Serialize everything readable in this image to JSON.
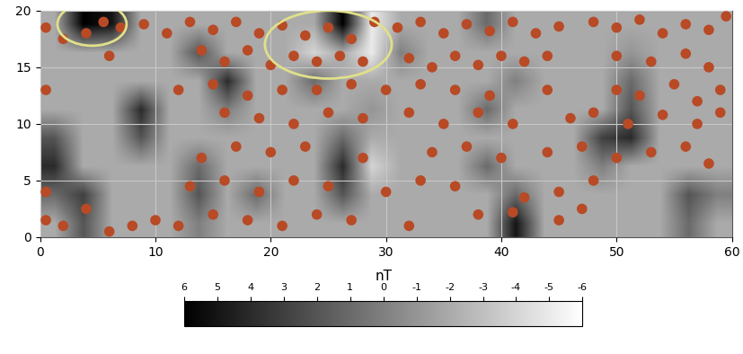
{
  "chart_data": {
    "type": "heatmap",
    "xlim": [
      0,
      60
    ],
    "xticks": [
      0,
      10,
      20,
      30,
      40,
      50,
      60
    ],
    "ylim": [
      0,
      20
    ],
    "yticks": [
      0,
      5,
      10,
      15,
      20
    ],
    "grid": true,
    "cells": [
      [
        -2,
        2,
        -2,
        -2,
        -2,
        0,
        -2,
        -2,
        -2,
        -2,
        -2,
        -2,
        -2,
        -2,
        -2,
        -2,
        5,
        -2,
        -2,
        -2,
        -2,
        -2,
        1,
        -2
      ],
      [
        1,
        3,
        -2,
        -2,
        -2,
        2,
        -2,
        1,
        -2,
        -2,
        2,
        -2,
        -2,
        -2,
        -2,
        -2,
        1,
        -2,
        -2,
        -2,
        -2,
        -2,
        2,
        0
      ],
      [
        4,
        -2,
        -2,
        -2,
        -2,
        1,
        -2,
        -2,
        -2,
        -2,
        4,
        -4,
        -2,
        -2,
        -2,
        1,
        -2,
        -2,
        -2,
        0,
        -2,
        -2,
        -2,
        -2
      ],
      [
        2,
        -2,
        -2,
        2,
        -2,
        -2,
        -2,
        -2,
        -2,
        -2,
        1,
        -2,
        -2,
        -2,
        -2,
        -2,
        -2,
        -2,
        -2,
        3,
        4,
        -2,
        -2,
        -2
      ],
      [
        -2,
        -2,
        -2,
        4,
        -2,
        -2,
        0,
        -2,
        -2,
        -2,
        -2,
        -1,
        -2,
        -2,
        -2,
        1,
        -2,
        -2,
        -2,
        -2,
        2,
        -2,
        -2,
        -2
      ],
      [
        -2,
        -2,
        -2,
        -2,
        -2,
        -2,
        4,
        -2,
        -2,
        1,
        -2,
        -2,
        -2,
        -2,
        -2,
        -2,
        0,
        -2,
        -2,
        -2,
        1,
        -2,
        -2,
        -2
      ],
      [
        -2,
        -2,
        -2,
        -2,
        -2,
        2,
        -2,
        -2,
        -2,
        -4,
        -2,
        -5,
        0,
        -2,
        -2,
        -2,
        -2,
        -2,
        -2,
        -2,
        -1,
        -2,
        -2,
        -2
      ],
      [
        -2,
        6,
        5,
        -2,
        -2,
        -2,
        -2,
        -2,
        -2,
        -2,
        6,
        -5,
        -2,
        -2,
        -2,
        1,
        -2,
        -2,
        -2,
        -2,
        -2,
        -2,
        -2,
        -2
      ]
    ],
    "colorbar_label": "nT",
    "colorbar_range": [
      6,
      -6
    ],
    "colorbar_ticks": [
      6,
      5,
      4,
      3,
      2,
      1,
      0,
      -1,
      -2,
      -3,
      -4,
      -5,
      -6
    ],
    "overlay": {
      "color": "#b84a26",
      "points": [
        [
          0.5,
          18.5
        ],
        [
          2,
          17.5
        ],
        [
          4,
          18
        ],
        [
          5.5,
          19
        ],
        [
          7,
          18.5
        ],
        [
          9,
          18.8
        ],
        [
          11,
          18
        ],
        [
          13,
          19
        ],
        [
          15,
          18.3
        ],
        [
          17,
          19
        ],
        [
          19,
          18
        ],
        [
          21,
          18.7
        ],
        [
          23,
          17.8
        ],
        [
          25,
          18.5
        ],
        [
          27,
          17.5
        ],
        [
          29,
          19
        ],
        [
          31,
          18.5
        ],
        [
          33,
          19
        ],
        [
          35,
          18
        ],
        [
          37,
          18.8
        ],
        [
          39,
          18.2
        ],
        [
          41,
          19
        ],
        [
          43,
          18
        ],
        [
          45,
          18.6
        ],
        [
          48,
          19
        ],
        [
          50,
          18.5
        ],
        [
          52,
          19.2
        ],
        [
          54,
          18
        ],
        [
          56,
          18.8
        ],
        [
          58,
          18.3
        ],
        [
          59.5,
          19.5
        ],
        [
          6,
          16
        ],
        [
          14,
          16.5
        ],
        [
          16,
          15.5
        ],
        [
          18,
          16.5
        ],
        [
          20,
          15.2
        ],
        [
          22,
          16
        ],
        [
          24,
          15.5
        ],
        [
          26,
          16
        ],
        [
          28,
          15.5
        ],
        [
          32,
          15.8
        ],
        [
          34,
          15
        ],
        [
          36,
          16
        ],
        [
          38,
          15.2
        ],
        [
          40,
          16
        ],
        [
          42,
          15.5
        ],
        [
          44,
          16
        ],
        [
          50,
          16
        ],
        [
          53,
          15.5
        ],
        [
          56,
          16.2
        ],
        [
          58,
          15
        ],
        [
          0.5,
          13
        ],
        [
          12,
          13
        ],
        [
          15,
          13.5
        ],
        [
          18,
          12.5
        ],
        [
          21,
          13
        ],
        [
          24,
          13
        ],
        [
          27,
          13.5
        ],
        [
          30,
          13
        ],
        [
          33,
          13.5
        ],
        [
          36,
          13
        ],
        [
          39,
          12.5
        ],
        [
          44,
          13
        ],
        [
          50,
          13
        ],
        [
          52,
          12.5
        ],
        [
          55,
          13.5
        ],
        [
          57,
          12
        ],
        [
          59,
          13
        ],
        [
          16,
          11
        ],
        [
          19,
          10.5
        ],
        [
          22,
          10
        ],
        [
          25,
          11
        ],
        [
          28,
          10.5
        ],
        [
          32,
          11
        ],
        [
          35,
          10
        ],
        [
          38,
          11
        ],
        [
          41,
          10
        ],
        [
          46,
          10.5
        ],
        [
          48,
          11
        ],
        [
          51,
          10
        ],
        [
          54,
          10.8
        ],
        [
          57,
          10
        ],
        [
          59,
          11
        ],
        [
          14,
          7
        ],
        [
          17,
          8
        ],
        [
          20,
          7.5
        ],
        [
          23,
          8
        ],
        [
          28,
          7
        ],
        [
          34,
          7.5
        ],
        [
          37,
          8
        ],
        [
          40,
          7
        ],
        [
          44,
          7.5
        ],
        [
          47,
          8
        ],
        [
          50,
          7
        ],
        [
          53,
          7.5
        ],
        [
          56,
          8
        ],
        [
          58,
          6.5
        ],
        [
          0.5,
          4
        ],
        [
          13,
          4.5
        ],
        [
          16,
          5
        ],
        [
          19,
          4
        ],
        [
          22,
          5
        ],
        [
          25,
          4.5
        ],
        [
          30,
          4
        ],
        [
          33,
          5
        ],
        [
          36,
          4.5
        ],
        [
          42,
          3.5
        ],
        [
          45,
          4
        ],
        [
          48,
          5
        ],
        [
          0.5,
          1.5
        ],
        [
          2,
          1
        ],
        [
          4,
          2.5
        ],
        [
          6,
          0.5
        ],
        [
          8,
          1
        ],
        [
          10,
          1.5
        ],
        [
          12,
          1
        ],
        [
          15,
          2
        ],
        [
          18,
          1.5
        ],
        [
          21,
          1
        ],
        [
          24,
          2
        ],
        [
          27,
          1.5
        ],
        [
          32,
          1
        ],
        [
          38,
          2
        ],
        [
          41,
          2.2
        ],
        [
          45,
          1.5
        ],
        [
          47,
          2.5
        ]
      ]
    },
    "highlights": {
      "color": "#e0e08a",
      "ellipses": [
        {
          "x": 4.5,
          "y": 18.8,
          "width": 6,
          "height": 3.8
        },
        {
          "x": 25,
          "y": 17,
          "width": 11,
          "height": 6
        }
      ]
    }
  }
}
